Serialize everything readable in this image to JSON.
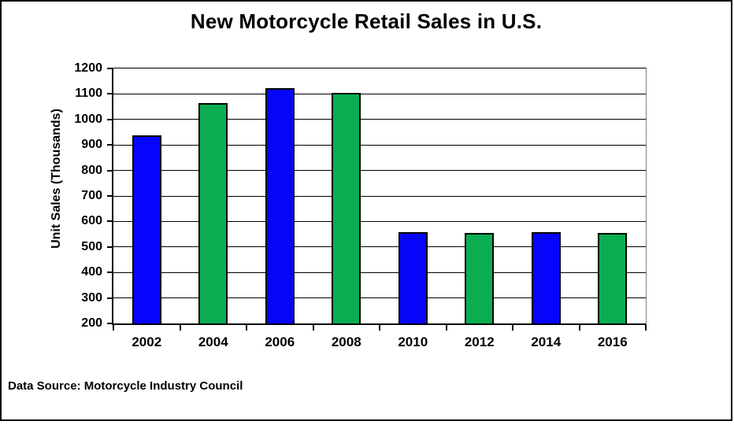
{
  "canvas": {
    "background": "#FFFFFF",
    "frame_border_color": "#000000"
  },
  "chart_data": {
    "type": "bar",
    "title": "New Motorcycle Retail Sales in U.S.",
    "xlabel": "",
    "ylabel": "Unit Sales (Thousands)",
    "categories": [
      "2002",
      "2004",
      "2006",
      "2008",
      "2010",
      "2012",
      "2014",
      "2016"
    ],
    "values": [
      938,
      1063,
      1123,
      1103,
      558,
      555,
      557,
      556
    ],
    "bar_colors": [
      "#0505FA",
      "#0BAD51",
      "#0505FA",
      "#0BAD51",
      "#0505FA",
      "#0BAD51",
      "#0505FA",
      "#0BAD51"
    ],
    "ylim": [
      200,
      1200
    ],
    "yticks": [
      200,
      300,
      400,
      500,
      600,
      700,
      800,
      900,
      1000,
      1100,
      1200
    ],
    "ytick_interval": 100,
    "grid": true,
    "legend": false,
    "annotation": "Data Source: Motorcycle Industry Council"
  },
  "colors": {
    "bar_blue": "#0505FA",
    "bar_green": "#0BAD51",
    "axis": "#000000",
    "gridline": "#000000",
    "plot_border_gray": "#7F7F7F",
    "text": "#000000"
  }
}
